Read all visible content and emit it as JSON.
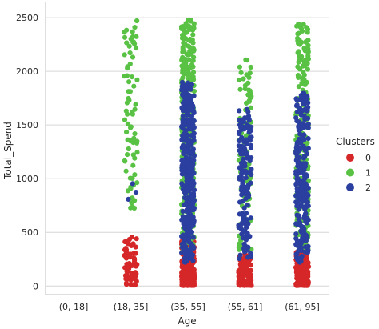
{
  "chart_data": {
    "type": "scatter",
    "variant": "strip",
    "xlabel": "Age",
    "ylabel": "Total_Spend",
    "categories": [
      "(0, 18]",
      "(18, 35]",
      "(35, 55]",
      "(55, 61]",
      "(61, 95]"
    ],
    "yticks": [
      0,
      500,
      1000,
      1500,
      2000,
      2500
    ],
    "ylim": [
      -80,
      2650
    ],
    "grid": true,
    "legend": {
      "title": "Clusters",
      "placement": "right",
      "entries": [
        "0",
        "1",
        "2"
      ]
    },
    "series": [
      {
        "name": "0",
        "color": "#d62728",
        "groups": [
          {
            "category": "(18, 35]",
            "count": 70,
            "ymin": 5,
            "ymax": 460
          },
          {
            "category": "(35, 55]",
            "count": 420,
            "ymin": 5,
            "ymax": 420
          },
          {
            "category": "(55, 61]",
            "count": 130,
            "ymin": 5,
            "ymax": 300
          },
          {
            "category": "(61, 95]",
            "count": 210,
            "ymin": 5,
            "ymax": 320
          }
        ]
      },
      {
        "name": "1",
        "color": "#59c244",
        "groups": [
          {
            "category": "(18, 35]",
            "count": 75,
            "ymin": 650,
            "ymax": 2530
          },
          {
            "category": "(35, 55]",
            "count": 330,
            "ymin": 320,
            "ymax": 2490
          },
          {
            "category": "(55, 61]",
            "count": 95,
            "ymin": 330,
            "ymax": 2120
          },
          {
            "category": "(61, 95]",
            "count": 220,
            "ymin": 330,
            "ymax": 2450
          }
        ]
      },
      {
        "name": "2",
        "color": "#2b3fa0",
        "groups": [
          {
            "category": "(18, 35]",
            "count": 3,
            "ymin": 700,
            "ymax": 1250
          },
          {
            "category": "(35, 55]",
            "count": 380,
            "ymin": 220,
            "ymax": 1900
          },
          {
            "category": "(55, 61]",
            "count": 150,
            "ymin": 250,
            "ymax": 1650
          },
          {
            "category": "(61, 95]",
            "count": 240,
            "ymin": 220,
            "ymax": 1800
          }
        ]
      }
    ]
  }
}
